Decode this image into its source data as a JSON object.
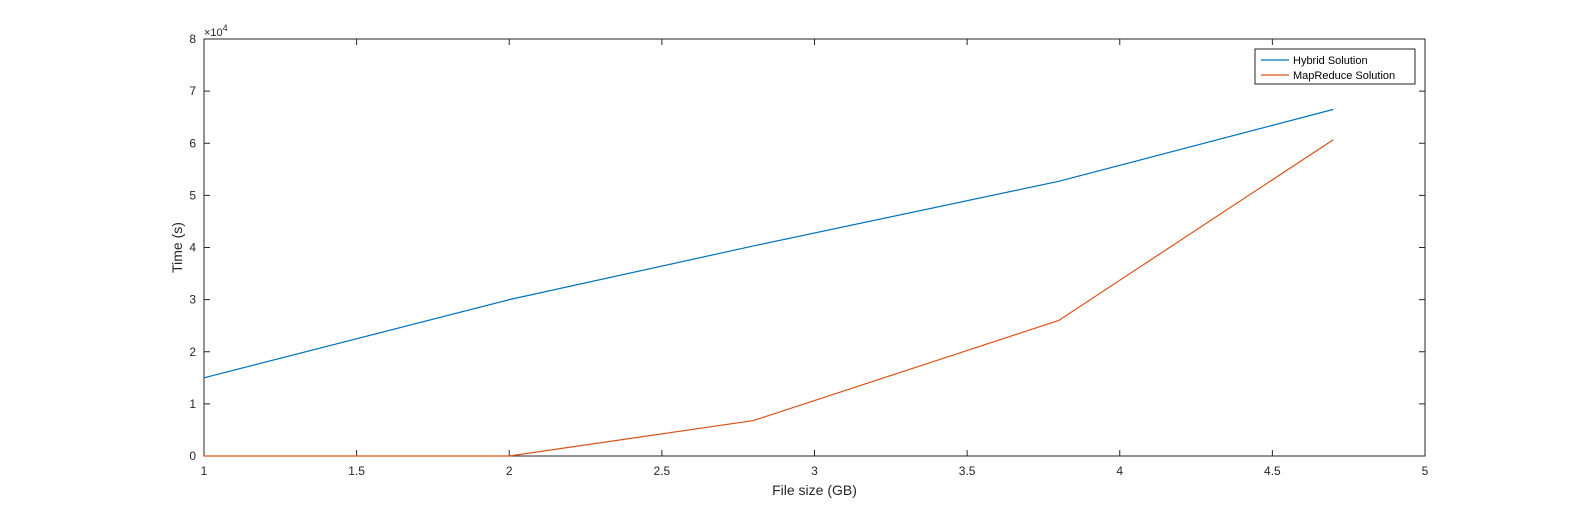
{
  "chart_data": {
    "type": "line",
    "title": "",
    "xlabel": "File size (GB)",
    "ylabel": "Time (s)",
    "xlim": [
      1,
      5
    ],
    "ylim": [
      0,
      80000
    ],
    "x_ticks": [
      1,
      1.5,
      2,
      2.5,
      3,
      3.5,
      4,
      4.5,
      5
    ],
    "x_tick_labels": [
      "1",
      "1.5",
      "2",
      "2.5",
      "3",
      "3.5",
      "4",
      "4.5",
      "5"
    ],
    "y_ticks": [
      0,
      10000,
      20000,
      30000,
      40000,
      50000,
      60000,
      70000,
      80000
    ],
    "y_tick_labels": [
      "0",
      "1",
      "2",
      "3",
      "4",
      "5",
      "6",
      "7",
      "8"
    ],
    "y_exponent_base": "×10",
    "y_exponent_power": "4",
    "grid": false,
    "legend_position": "top-right",
    "series": [
      {
        "name": "Hybrid Solution",
        "color": "#0072BD",
        "x": [
          1,
          2,
          2.8,
          3.8,
          4.7
        ],
        "y": [
          15000,
          30000,
          40300,
          52700,
          66500
        ]
      },
      {
        "name": "MapReduce Solution",
        "color": "#D95319",
        "x": [
          1,
          2,
          2.8,
          3.8,
          4.7
        ],
        "y": [
          0,
          0,
          6800,
          26000,
          60700
        ]
      }
    ]
  }
}
